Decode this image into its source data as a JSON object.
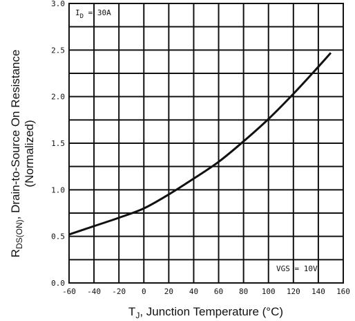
{
  "chart_data": {
    "type": "line",
    "xlabel_main": "T",
    "xlabel_sub": "J",
    "xlabel_rest": ", Junction Temperature (°C)",
    "ylabel_main": "R",
    "ylabel_sub": "DS(ON)",
    "ylabel_rest": ", Drain-to-Source On Resistance",
    "ylabel_line2": "(Normalized)",
    "xlim": [
      -60,
      160
    ],
    "ylim": [
      0.0,
      3.0
    ],
    "grid": true,
    "x_ticks": [
      "-60",
      "-40",
      "-20",
      "0",
      "20",
      "40",
      "60",
      "80",
      "100",
      "120",
      "140",
      "160"
    ],
    "y_ticks": [
      "0.0",
      "0.5",
      "1.0",
      "1.5",
      "2.0",
      "2.5",
      "3.0"
    ],
    "annotations": {
      "id_main": "I",
      "id_sub": "D",
      "id_rest": " = 30A",
      "vgs": "VGS = 10V"
    },
    "series": [
      {
        "x": [
          -60,
          -40,
          -20,
          0,
          20,
          40,
          60,
          80,
          100,
          120,
          140,
          150
        ],
        "y": [
          0.52,
          0.61,
          0.7,
          0.8,
          0.95,
          1.12,
          1.3,
          1.52,
          1.76,
          2.03,
          2.32,
          2.47
        ]
      }
    ]
  }
}
